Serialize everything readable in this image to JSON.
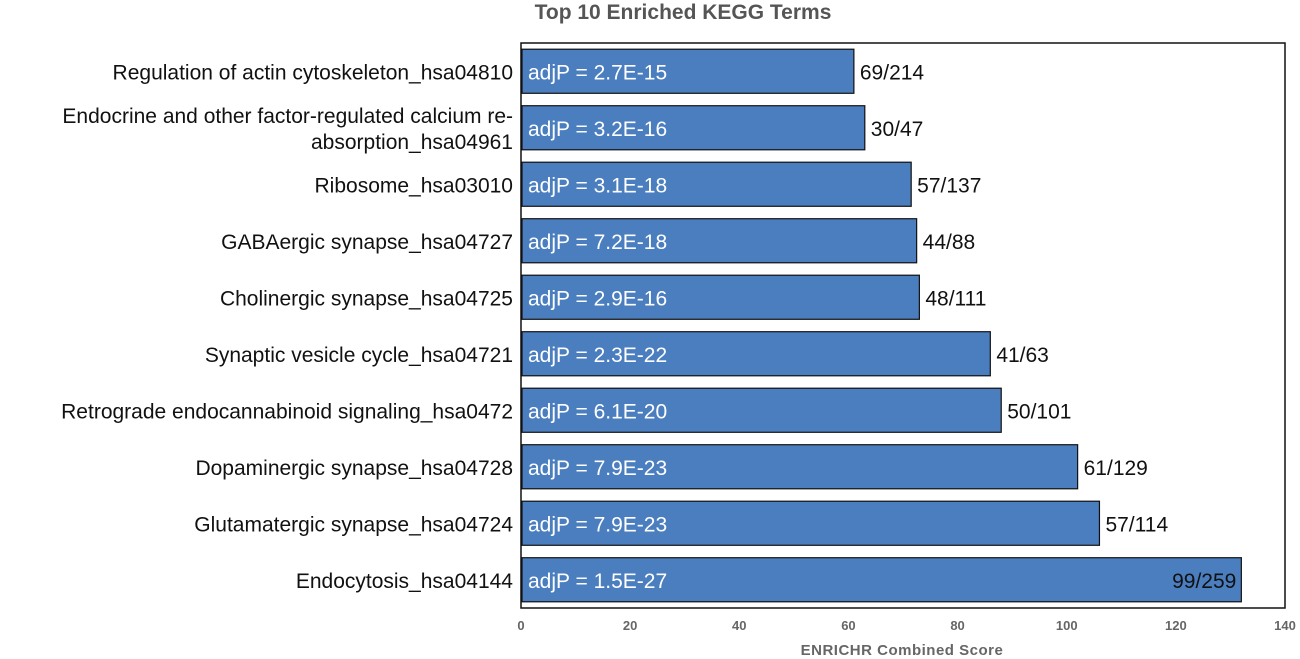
{
  "chart_data": {
    "type": "bar",
    "orientation": "horizontal",
    "title": "Top 10 Enriched KEGG Terms",
    "xlabel": "ENRICHR Combined Score",
    "ylabel": "",
    "xlim": [
      0,
      140
    ],
    "xticks": [
      "0",
      "20",
      "40",
      "60",
      "80",
      "100",
      "120",
      "140"
    ],
    "grid": false,
    "bar_color": "#4a7ebf",
    "categories": [
      "Regulation of actin cytoskeleton_hsa04810",
      "Endocrine and other factor-regulated calcium re-absorption_hsa04961",
      "Ribosome_hsa03010",
      "GABAergic synapse_hsa04727",
      "Cholinergic synapse_hsa04725",
      "Synaptic vesicle cycle_hsa04721",
      "Retrograde endocannabinoid signaling_hsa0472",
      "Dopaminergic synapse_hsa04728",
      "Glutamatergic synapse_hsa04724",
      "Endocytosis_hsa04144"
    ],
    "category_lines": [
      [
        "Regulation of actin cytoskeleton_hsa04810"
      ],
      [
        "Endocrine and other factor-regulated calcium re-",
        "absorption_hsa04961"
      ],
      [
        "Ribosome_hsa03010"
      ],
      [
        "GABAergic synapse_hsa04727"
      ],
      [
        "Cholinergic synapse_hsa04725"
      ],
      [
        "Synaptic vesicle cycle_hsa04721"
      ],
      [
        "Retrograde endocannabinoid signaling_hsa0472"
      ],
      [
        "Dopaminergic synapse_hsa04728"
      ],
      [
        "Glutamatergic synapse_hsa04724"
      ],
      [
        "Endocytosis_hsa04144"
      ]
    ],
    "values": [
      61,
      63,
      71.5,
      72.5,
      73,
      86,
      88,
      102,
      106,
      132
    ],
    "adjp_labels": [
      "adjP = 2.7E-15",
      "adjP = 3.2E-16",
      "adjP = 3.1E-18",
      "adjP = 7.2E-18",
      "adjP = 2.9E-16",
      "adjP = 2.3E-22",
      "adjP = 6.1E-20",
      "adjP = 7.9E-23",
      "adjP = 7.9E-23",
      "adjP = 1.5E-27"
    ],
    "count_labels": [
      "69/214",
      "30/47",
      "57/137",
      "44/88",
      "48/111",
      "41/63",
      "50/101",
      "61/129",
      "57/114",
      "99/259"
    ]
  }
}
